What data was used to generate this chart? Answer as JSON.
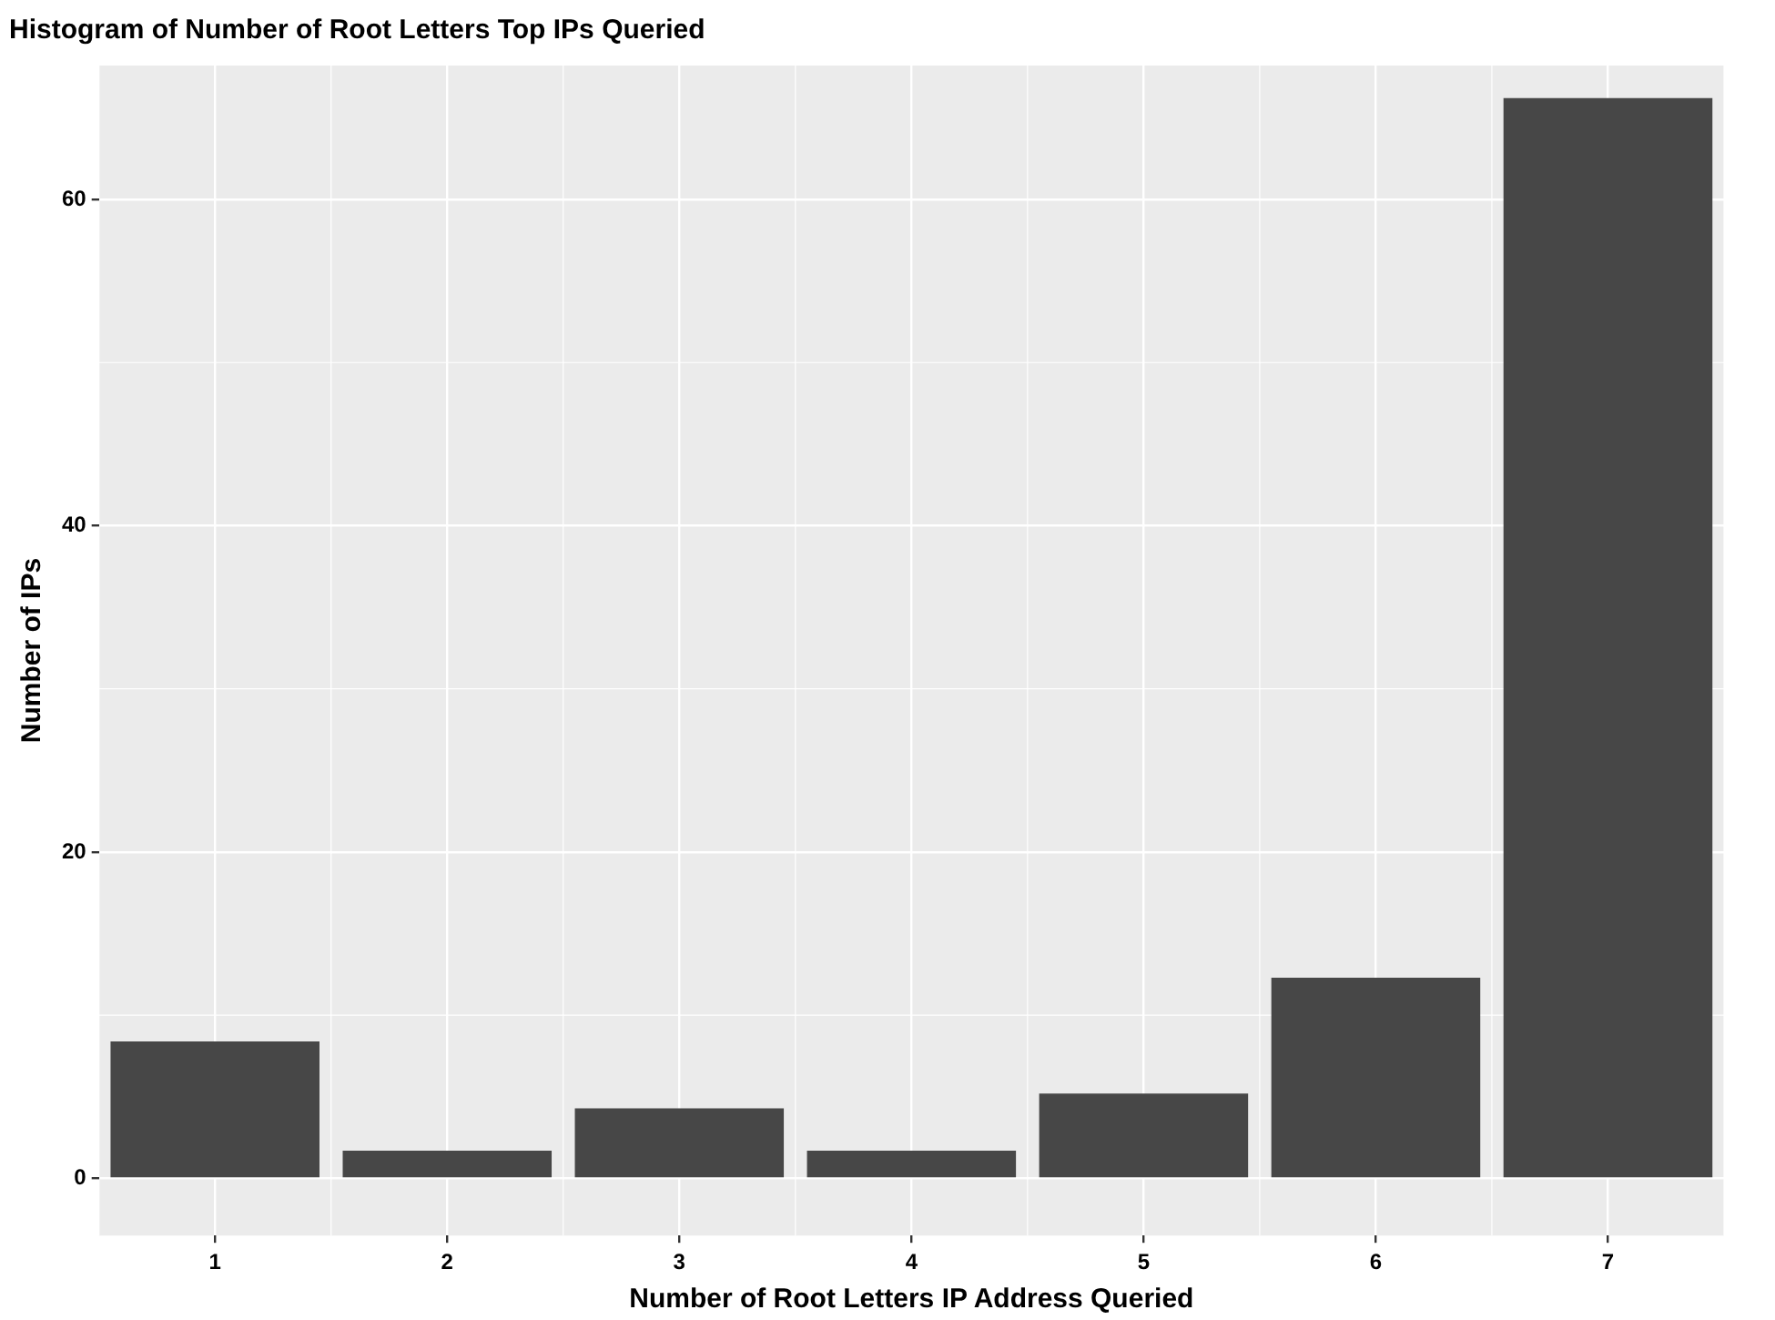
{
  "chart_data": {
    "type": "bar",
    "title": "Histogram of Number of Root Letters Top IPs Queried",
    "xlabel": "Number of Root Letters IP Address Queried",
    "ylabel": "Number of IPs",
    "categories": [
      "1",
      "2",
      "3",
      "4",
      "5",
      "6",
      "7"
    ],
    "values": [
      8.4,
      1.7,
      4.3,
      1.7,
      5.2,
      12.3,
      66.2
    ],
    "color": "#474747",
    "ylim": [
      -3.5,
      68.2
    ],
    "yticks": [
      0,
      {
        "value": 10,
        "label": null
      },
      20,
      {
        "value": 30,
        "label": null
      },
      40,
      {
        "value": 50,
        "label": null
      },
      60
    ],
    "grid": true,
    "legend": false
  }
}
